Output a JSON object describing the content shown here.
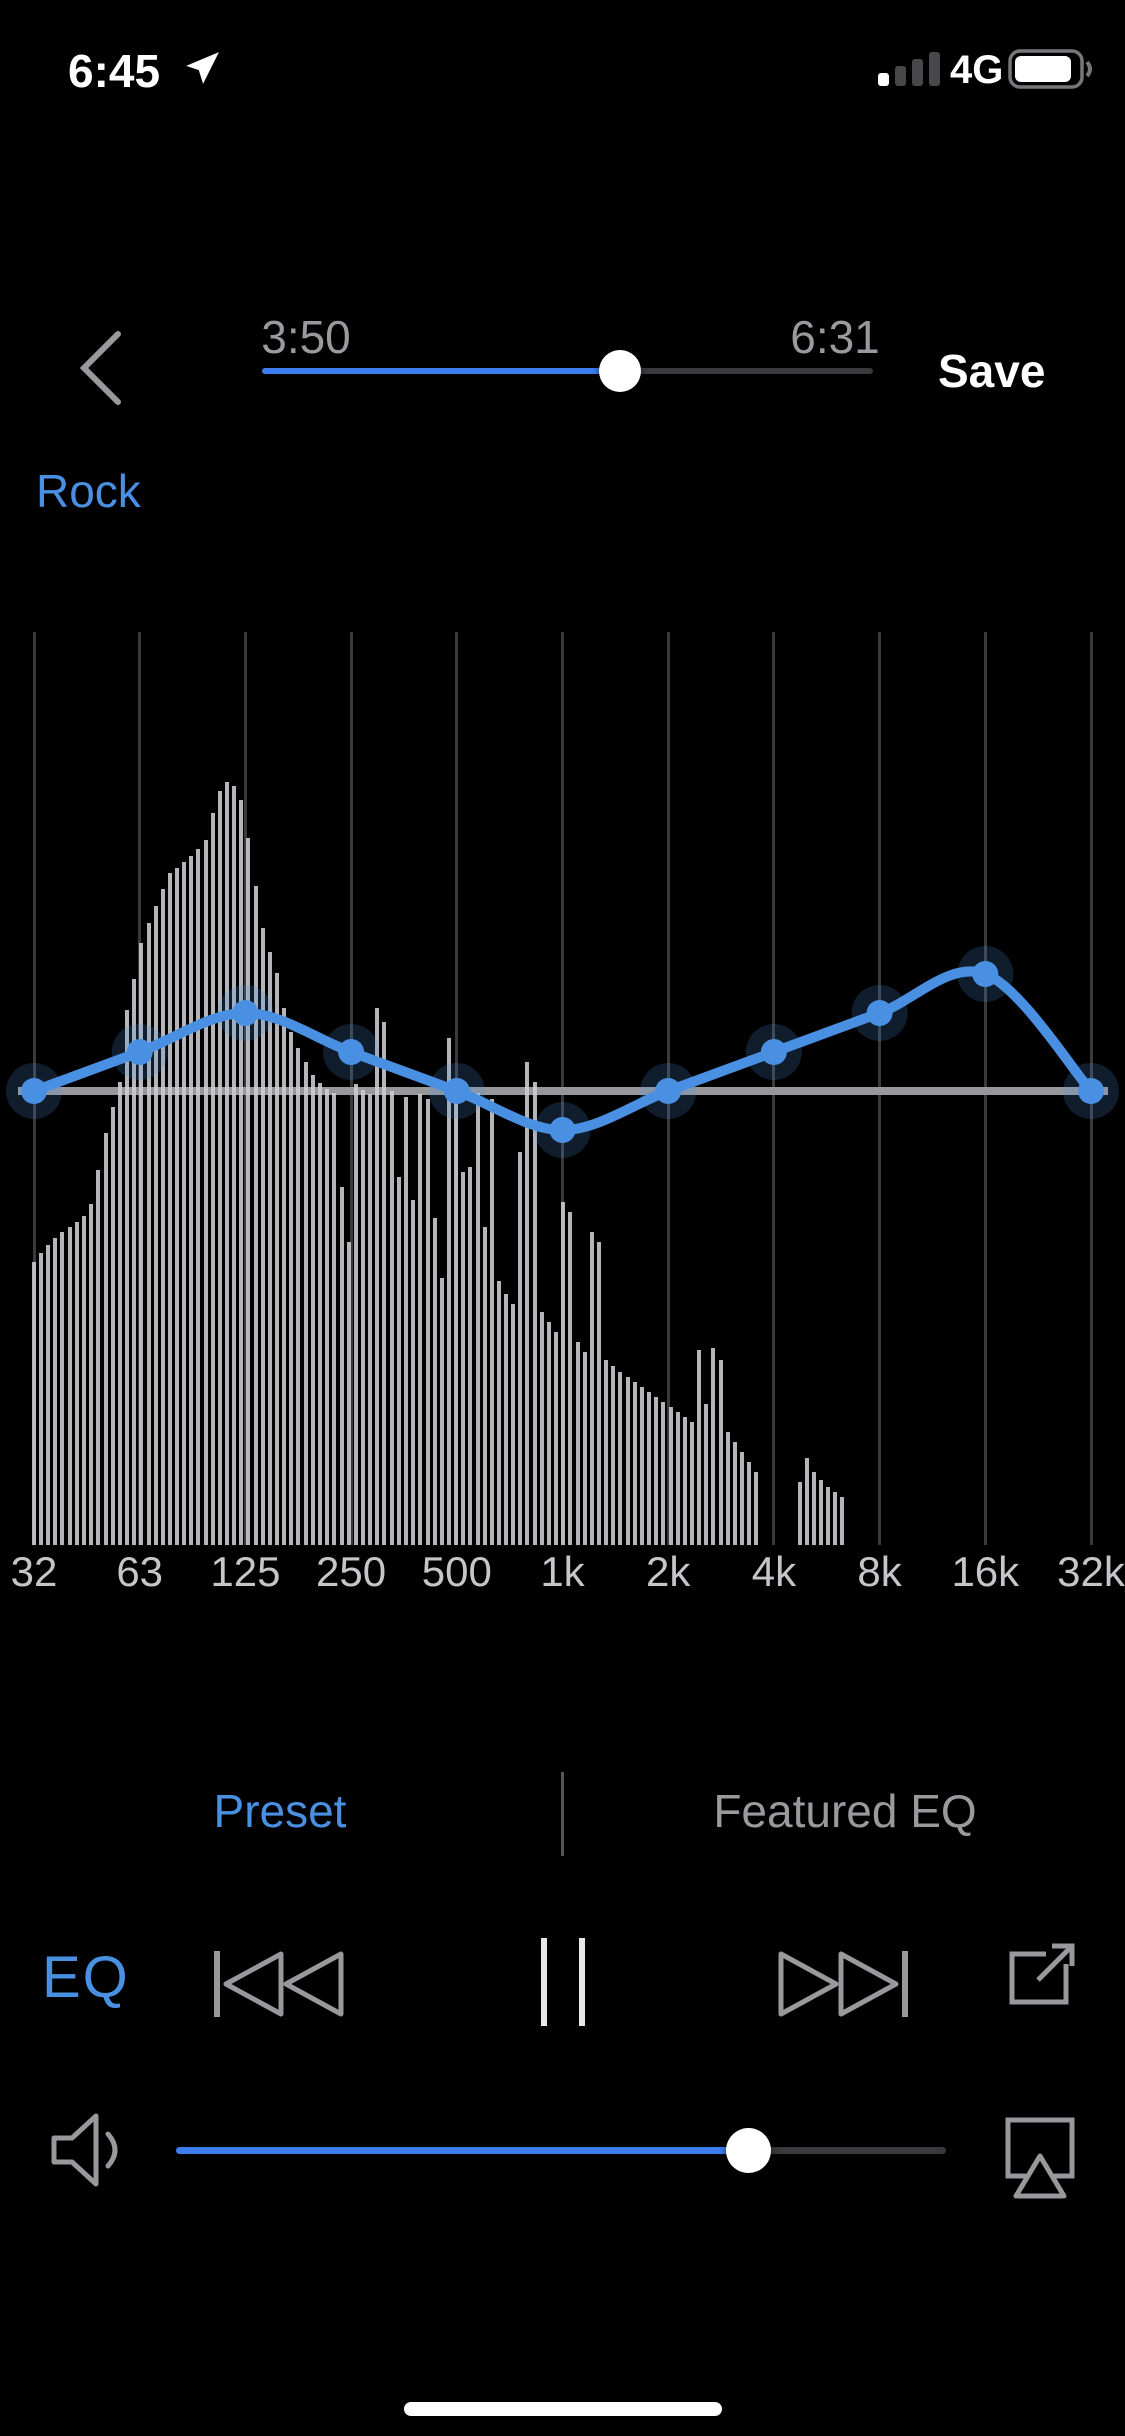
{
  "colors": {
    "accent_blue": "#4A90E2",
    "slider_blue": "#3C7EF0",
    "text_gray": "#9A9A9E",
    "label_gray": "#C6C6C9",
    "icon_gray": "#99999C",
    "grid_gray": "#3A3A3C",
    "zero_line_gray": "#98989B",
    "spectrum_bar_gray": "#CECED3"
  },
  "status_bar": {
    "time": "6:45",
    "location_icon": "location-arrow-icon",
    "signal_bars_active": 1,
    "signal_bars_total": 4,
    "network": "4G",
    "battery_level_percent": 90
  },
  "player": {
    "back_icon": "chevron-left-icon",
    "current_time": "3:50",
    "total_time": "6:31",
    "progress_percent": 58.6,
    "save_label": "Save"
  },
  "preset_name": "Rock",
  "chart_data": {
    "type": "line",
    "x_tick_labels": [
      "32",
      "63",
      "125",
      "250",
      "500",
      "1k",
      "2k",
      "4k",
      "8k",
      "16k",
      "32k"
    ],
    "eq_curve": {
      "frequencies_hz": [
        32,
        63,
        125,
        250,
        500,
        1000,
        2000,
        4000,
        8000,
        16000,
        32000
      ],
      "gains_db": [
        0,
        1,
        2,
        1,
        0,
        -1,
        0,
        1,
        2,
        3,
        0
      ]
    },
    "gain_axis_range_db": [
      -12,
      12
    ],
    "zero_line": true,
    "grid": "vertical-log-frequency",
    "legend": "none",
    "spectrum_bars_x_heightfraction": [
      [
        34,
        0.31
      ],
      [
        41,
        0.32
      ],
      [
        48,
        0.329
      ],
      [
        55,
        0.336
      ],
      [
        62,
        0.343
      ],
      [
        70,
        0.348
      ],
      [
        77,
        0.354
      ],
      [
        84,
        0.36
      ],
      [
        91,
        0.373
      ],
      [
        98,
        0.411
      ],
      [
        106,
        0.451
      ],
      [
        113,
        0.48
      ],
      [
        120,
        0.507
      ],
      [
        127,
        0.586
      ],
      [
        134,
        0.62
      ],
      [
        141,
        0.659
      ],
      [
        149,
        0.681
      ],
      [
        156,
        0.7
      ],
      [
        163,
        0.718
      ],
      [
        170,
        0.736
      ],
      [
        177,
        0.741
      ],
      [
        184,
        0.748
      ],
      [
        191,
        0.755
      ],
      [
        198,
        0.762
      ],
      [
        206,
        0.772
      ],
      [
        213,
        0.802
      ],
      [
        220,
        0.826
      ],
      [
        227,
        0.836
      ],
      [
        234,
        0.831
      ],
      [
        241,
        0.816
      ],
      [
        248,
        0.774
      ],
      [
        256,
        0.722
      ],
      [
        263,
        0.676
      ],
      [
        270,
        0.649
      ],
      [
        277,
        0.627
      ],
      [
        284,
        0.588
      ],
      [
        291,
        0.562
      ],
      [
        298,
        0.544
      ],
      [
        306,
        0.529
      ],
      [
        313,
        0.515
      ],
      [
        320,
        0.506
      ],
      [
        327,
        0.499
      ],
      [
        334,
        0.495
      ],
      [
        342,
        0.392
      ],
      [
        349,
        0.332
      ],
      [
        356,
        0.505
      ],
      [
        363,
        0.498
      ],
      [
        370,
        0.494
      ],
      [
        377,
        0.588
      ],
      [
        384,
        0.573
      ],
      [
        392,
        0.497
      ],
      [
        399,
        0.403
      ],
      [
        406,
        0.491
      ],
      [
        413,
        0.378
      ],
      [
        420,
        0.494
      ],
      [
        428,
        0.488
      ],
      [
        435,
        0.358
      ],
      [
        442,
        0.292
      ],
      [
        449,
        0.555
      ],
      [
        456,
        0.491
      ],
      [
        463,
        0.408
      ],
      [
        470,
        0.414
      ],
      [
        478,
        0.495
      ],
      [
        485,
        0.348
      ],
      [
        492,
        0.488
      ],
      [
        499,
        0.289
      ],
      [
        506,
        0.275
      ],
      [
        513,
        0.264
      ],
      [
        520,
        0.43
      ],
      [
        527,
        0.529
      ],
      [
        535,
        0.507
      ],
      [
        542,
        0.255
      ],
      [
        549,
        0.244
      ],
      [
        556,
        0.233
      ],
      [
        563,
        0.376
      ],
      [
        570,
        0.365
      ],
      [
        578,
        0.222
      ],
      [
        585,
        0.211
      ],
      [
        592,
        0.343
      ],
      [
        599,
        0.332
      ],
      [
        606,
        0.203
      ],
      [
        613,
        0.196
      ],
      [
        620,
        0.189
      ],
      [
        628,
        0.184
      ],
      [
        635,
        0.179
      ],
      [
        642,
        0.173
      ],
      [
        649,
        0.168
      ],
      [
        656,
        0.162
      ],
      [
        663,
        0.157
      ],
      [
        671,
        0.151
      ],
      [
        678,
        0.146
      ],
      [
        685,
        0.14
      ],
      [
        692,
        0.135
      ],
      [
        699,
        0.214
      ],
      [
        706,
        0.154
      ],
      [
        713,
        0.216
      ],
      [
        721,
        0.203
      ],
      [
        728,
        0.124
      ],
      [
        735,
        0.113
      ],
      [
        742,
        0.102
      ],
      [
        749,
        0.091
      ],
      [
        756,
        0.08
      ],
      [
        800,
        0.069
      ],
      [
        807,
        0.095
      ],
      [
        814,
        0.08
      ],
      [
        821,
        0.071
      ],
      [
        828,
        0.064
      ],
      [
        835,
        0.058
      ],
      [
        842,
        0.053
      ]
    ]
  },
  "tabs": [
    {
      "label": "Preset",
      "active": true
    },
    {
      "label": "Featured EQ",
      "active": false
    }
  ],
  "transport": {
    "eq_button_label": "EQ",
    "icons": [
      "previous-track-icon",
      "pause-icon",
      "next-track-icon",
      "export-icon"
    ]
  },
  "volume": {
    "icon": "speaker-icon",
    "level_percent": 74.3,
    "output_icon": "airplay-icon"
  },
  "home_indicator": true
}
